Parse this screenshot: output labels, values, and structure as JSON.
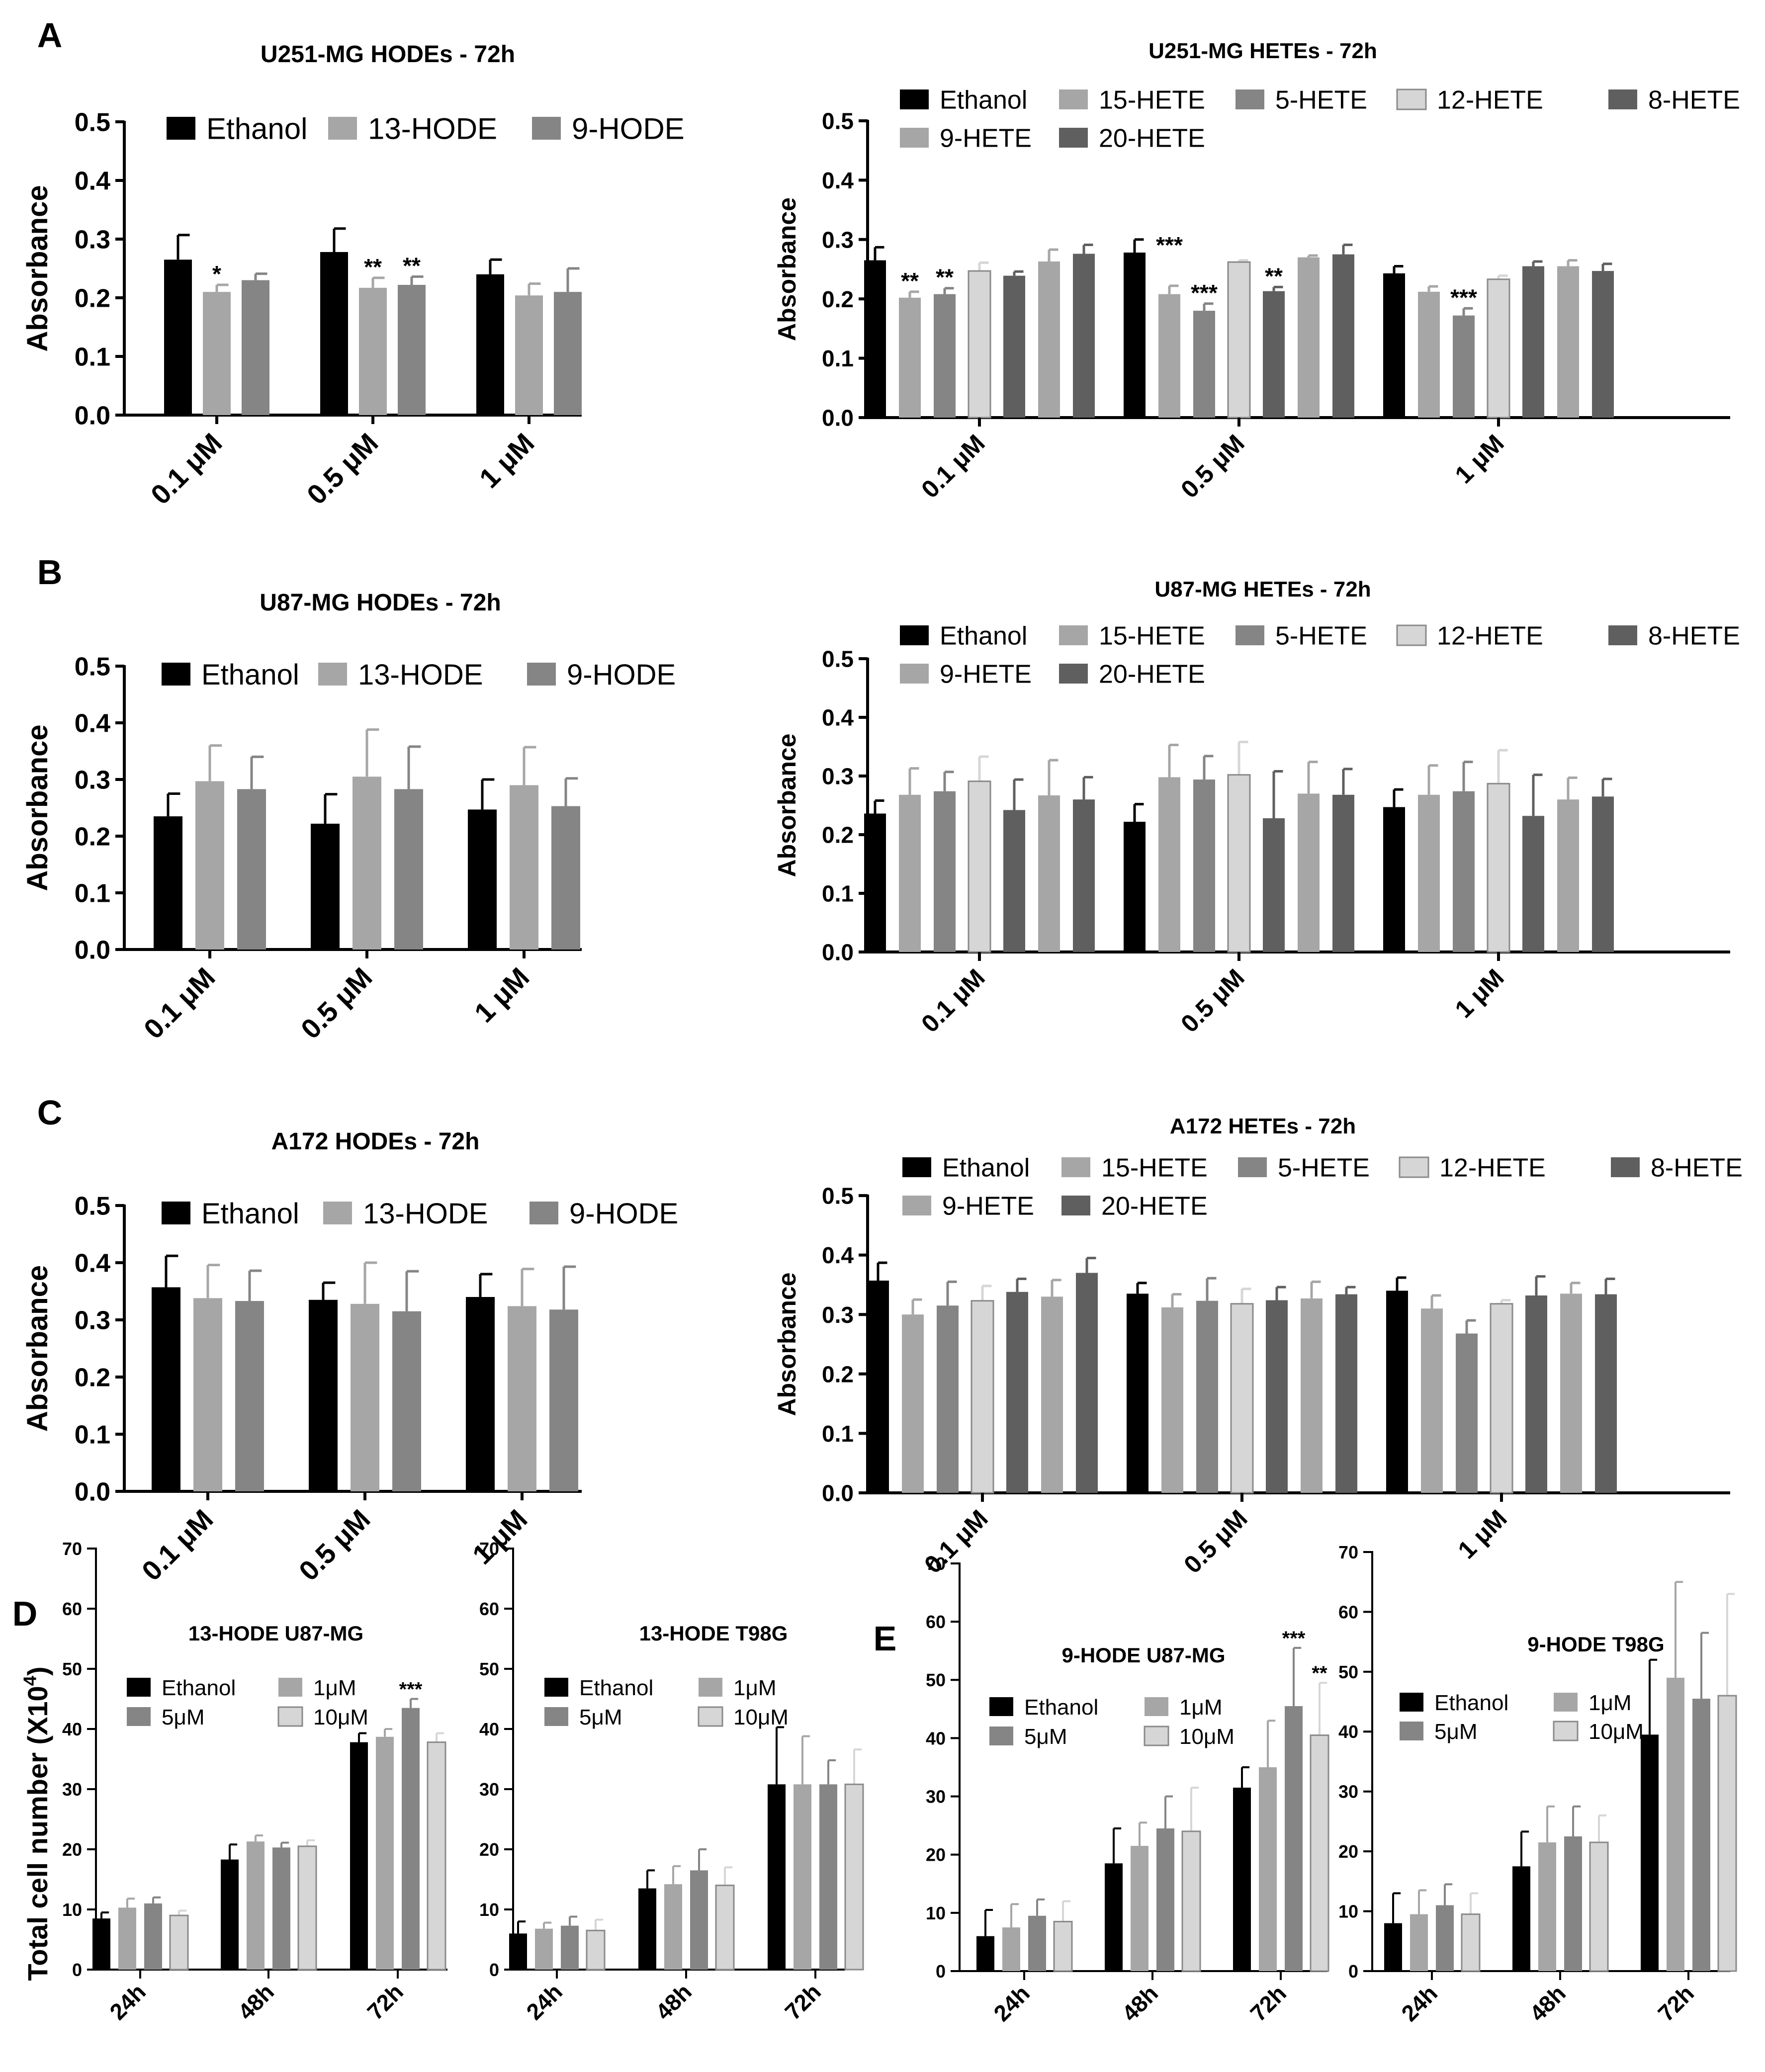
{
  "panel_letters": [
    "A",
    "B",
    "C",
    "D",
    "E"
  ],
  "colors": {
    "Ethanol": "#000000",
    "13-HODE": "#a6a6a6",
    "9-HODE": "#858585",
    "15-HETE": "#a6a6a6",
    "5-HETE": "#858585",
    "12-HETE": "#d6d6d6",
    "8-HETE": "#5f5f5f",
    "9-HETE": "#a6a6a6",
    "20-HETE": "#5f5f5f",
    "1μM": "#a6a6a6",
    "5μM": "#858585",
    "10μM": "#d6d6d6"
  },
  "chart_data": [
    {
      "type": "bar",
      "panel": "A",
      "title": "U251-MG HODEs - 72h",
      "ylabel": "Absorbance",
      "xlabel": "",
      "ylim": [
        0,
        0.5
      ],
      "yticks": [
        0,
        0.1,
        0.2,
        0.3,
        0.4,
        0.5
      ],
      "ydecimals": 1,
      "categories": [
        "0.1 μM",
        "0.5 μM",
        "1 μM"
      ],
      "series": [
        {
          "name": "Ethanol",
          "values": [
            0.265,
            0.278,
            0.24
          ],
          "errors": [
            0.042,
            0.04,
            0.025
          ]
        },
        {
          "name": "13-HODE",
          "values": [
            0.21,
            0.217,
            0.204
          ],
          "errors": [
            0.012,
            0.017,
            0.02
          ]
        },
        {
          "name": "9-HODE",
          "values": [
            0.23,
            0.222,
            0.21
          ],
          "errors": [
            0.011,
            0.014,
            0.04
          ]
        }
      ],
      "annotations": [
        {
          "text": "*",
          "category": 0,
          "series": 1
        },
        {
          "text": "**",
          "category": 1,
          "series": 1
        },
        {
          "text": "**",
          "category": 1,
          "series": 2
        }
      ]
    },
    {
      "type": "bar",
      "panel": "A",
      "title": "U251-MG HETEs - 72h",
      "ylabel": "Absorbance",
      "xlabel": "",
      "ylim": [
        0,
        0.5
      ],
      "yticks": [
        0,
        0.1,
        0.2,
        0.3,
        0.4,
        0.5
      ],
      "ydecimals": 1,
      "categories": [
        "0.1 μM",
        "0.5 μM",
        "1 μM"
      ],
      "series": [
        {
          "name": "Ethanol",
          "values": [
            0.265,
            0.278,
            0.243
          ],
          "errors": [
            0.022,
            0.022,
            0.012
          ]
        },
        {
          "name": "15-HETE",
          "values": [
            0.202,
            0.208,
            0.212
          ],
          "errors": [
            0.01,
            0.014,
            0.009
          ]
        },
        {
          "name": "5-HETE",
          "values": [
            0.208,
            0.18,
            0.172
          ],
          "errors": [
            0.01,
            0.012,
            0.012
          ]
        },
        {
          "name": "12-HETE",
          "values": [
            0.247,
            0.262,
            0.233
          ],
          "errors": [
            0.014,
            0.003,
            0.006
          ]
        },
        {
          "name": "8-HETE",
          "values": [
            0.239,
            0.213,
            0.255
          ],
          "errors": [
            0.007,
            0.007,
            0.008
          ]
        },
        {
          "name": "9-HETE",
          "values": [
            0.263,
            0.27,
            0.255
          ],
          "errors": [
            0.02,
            0.003,
            0.01
          ]
        },
        {
          "name": "20-HETE",
          "values": [
            0.276,
            0.275,
            0.247
          ],
          "errors": [
            0.015,
            0.016,
            0.012
          ]
        }
      ],
      "annotations": [
        {
          "text": "**",
          "category": 0,
          "series": 1
        },
        {
          "text": "**",
          "category": 0,
          "series": 2
        },
        {
          "text": "***",
          "category": 1,
          "series": 1,
          "offset": 1
        },
        {
          "text": "***",
          "category": 1,
          "series": 2
        },
        {
          "text": "**",
          "category": 1,
          "series": 4
        },
        {
          "text": "***",
          "category": 2,
          "series": 2
        }
      ]
    },
    {
      "type": "bar",
      "panel": "B",
      "title": "U87-MG HODEs - 72h",
      "ylabel": "Absorbance",
      "xlabel": "",
      "ylim": [
        0,
        0.5
      ],
      "yticks": [
        0,
        0.1,
        0.2,
        0.3,
        0.4,
        0.5
      ],
      "ydecimals": 1,
      "categories": [
        "0.1 μM",
        "0.5 μM",
        "1 μM"
      ],
      "series": [
        {
          "name": "Ethanol",
          "values": [
            0.235,
            0.222,
            0.247
          ],
          "errors": [
            0.04,
            0.052,
            0.053
          ]
        },
        {
          "name": "13-HODE",
          "values": [
            0.297,
            0.305,
            0.29
          ],
          "errors": [
            0.063,
            0.083,
            0.067
          ]
        },
        {
          "name": "9-HODE",
          "values": [
            0.283,
            0.283,
            0.253
          ],
          "errors": [
            0.057,
            0.075,
            0.049
          ]
        }
      ],
      "annotations": []
    },
    {
      "type": "bar",
      "panel": "B",
      "title": "U87-MG HETEs - 72h",
      "ylabel": "Absorbance",
      "xlabel": "",
      "ylim": [
        0,
        0.5
      ],
      "yticks": [
        0,
        0.1,
        0.2,
        0.3,
        0.4,
        0.5
      ],
      "ydecimals": 1,
      "categories": [
        "0.1 μM",
        "0.5 μM",
        "1 μM"
      ],
      "series": [
        {
          "name": "Ethanol",
          "values": [
            0.236,
            0.222,
            0.247
          ],
          "errors": [
            0.022,
            0.03,
            0.03
          ]
        },
        {
          "name": "15-HETE",
          "values": [
            0.268,
            0.298,
            0.268
          ],
          "errors": [
            0.045,
            0.055,
            0.05
          ]
        },
        {
          "name": "5-HETE",
          "values": [
            0.274,
            0.294,
            0.274
          ],
          "errors": [
            0.033,
            0.04,
            0.05
          ]
        },
        {
          "name": "12-HETE",
          "values": [
            0.291,
            0.302,
            0.287
          ],
          "errors": [
            0.042,
            0.056,
            0.057
          ]
        },
        {
          "name": "8-HETE",
          "values": [
            0.242,
            0.228,
            0.232
          ],
          "errors": [
            0.052,
            0.08,
            0.07
          ]
        },
        {
          "name": "9-HETE",
          "values": [
            0.267,
            0.27,
            0.26
          ],
          "errors": [
            0.06,
            0.054,
            0.037
          ]
        },
        {
          "name": "20-HETE",
          "values": [
            0.26,
            0.268,
            0.265
          ],
          "errors": [
            0.038,
            0.044,
            0.03
          ]
        }
      ],
      "annotations": []
    },
    {
      "type": "bar",
      "panel": "C",
      "title": "A172 HODEs - 72h",
      "ylabel": "Absorbance",
      "xlabel": "",
      "ylim": [
        0,
        0.5
      ],
      "yticks": [
        0,
        0.1,
        0.2,
        0.3,
        0.4,
        0.5
      ],
      "ydecimals": 1,
      "categories": [
        "0.1 μM",
        "0.5 μM",
        "1 μM"
      ],
      "series": [
        {
          "name": "Ethanol",
          "values": [
            0.357,
            0.335,
            0.34
          ],
          "errors": [
            0.055,
            0.03,
            0.04
          ]
        },
        {
          "name": "13-HODE",
          "values": [
            0.338,
            0.328,
            0.324
          ],
          "errors": [
            0.058,
            0.072,
            0.065
          ]
        },
        {
          "name": "9-HODE",
          "values": [
            0.333,
            0.315,
            0.318
          ],
          "errors": [
            0.053,
            0.07,
            0.075
          ]
        }
      ],
      "annotations": []
    },
    {
      "type": "bar",
      "panel": "C",
      "title": "A172 HETEs - 72h",
      "ylabel": "Absorbance",
      "xlabel": "",
      "ylim": [
        0,
        0.5
      ],
      "yticks": [
        0,
        0.1,
        0.2,
        0.3,
        0.4,
        0.5
      ],
      "ydecimals": 1,
      "categories": [
        "0.1 μM",
        "0.5 μM",
        "1 μM"
      ],
      "series": [
        {
          "name": "Ethanol",
          "values": [
            0.357,
            0.335,
            0.34
          ],
          "errors": [
            0.03,
            0.018,
            0.022
          ]
        },
        {
          "name": "15-HETE",
          "values": [
            0.3,
            0.312,
            0.31
          ],
          "errors": [
            0.025,
            0.022,
            0.022
          ]
        },
        {
          "name": "5-HETE",
          "values": [
            0.315,
            0.323,
            0.268
          ],
          "errors": [
            0.04,
            0.038,
            0.022
          ]
        },
        {
          "name": "12-HETE",
          "values": [
            0.323,
            0.318,
            0.318
          ],
          "errors": [
            0.025,
            0.025,
            0.006
          ]
        },
        {
          "name": "8-HETE",
          "values": [
            0.338,
            0.324,
            0.332
          ],
          "errors": [
            0.022,
            0.022,
            0.032
          ]
        },
        {
          "name": "9-HETE",
          "values": [
            0.33,
            0.327,
            0.335
          ],
          "errors": [
            0.028,
            0.028,
            0.018
          ]
        },
        {
          "name": "20-HETE",
          "values": [
            0.37,
            0.334,
            0.334
          ],
          "errors": [
            0.025,
            0.012,
            0.026
          ]
        }
      ],
      "annotations": []
    },
    {
      "type": "bar",
      "panel": "D",
      "title": "13-HODE U87-MG",
      "ylabel": "Total cell number (X10",
      "ylabel_sup": "4",
      "ylabel_tail": ")",
      "xlabel": "",
      "ylim": [
        0,
        70
      ],
      "yticks": [
        0,
        10,
        20,
        30,
        40,
        50,
        60,
        70
      ],
      "ydecimals": 0,
      "categories": [
        "24h",
        "48h",
        "72h"
      ],
      "series": [
        {
          "name": "Ethanol",
          "values": [
            8.5,
            18.3,
            37.8
          ],
          "errors": [
            1.0,
            2.5,
            1.5
          ]
        },
        {
          "name": "1μM",
          "values": [
            10.3,
            21.3,
            38.7
          ],
          "errors": [
            1.5,
            1.0,
            1.3
          ]
        },
        {
          "name": "5μM",
          "values": [
            11.0,
            20.3,
            43.5
          ],
          "errors": [
            1.0,
            0.8,
            1.5
          ]
        },
        {
          "name": "10μM",
          "values": [
            9.0,
            20.5,
            37.8
          ],
          "errors": [
            0.8,
            1.0,
            1.5
          ]
        }
      ],
      "annotations": [
        {
          "text": "***",
          "category": 2,
          "series": 2
        }
      ]
    },
    {
      "type": "bar",
      "panel": "D",
      "title": "13-HODE T98G",
      "ylabel": "",
      "xlabel": "",
      "ylim": [
        0,
        70
      ],
      "yticks": [
        0,
        10,
        20,
        30,
        40,
        50,
        60,
        70
      ],
      "ydecimals": 0,
      "categories": [
        "24h",
        "48h",
        "72h"
      ],
      "series": [
        {
          "name": "Ethanol",
          "values": [
            6.0,
            13.5,
            30.8
          ],
          "errors": [
            2.0,
            3.0,
            9.5
          ]
        },
        {
          "name": "1μM",
          "values": [
            6.8,
            14.2,
            30.8
          ],
          "errors": [
            1.0,
            3.0,
            8.0
          ]
        },
        {
          "name": "5μM",
          "values": [
            7.3,
            16.5,
            30.8
          ],
          "errors": [
            1.5,
            3.5,
            4.0
          ]
        },
        {
          "name": "10μM",
          "values": [
            6.5,
            14.0,
            30.8
          ],
          "errors": [
            1.8,
            3.0,
            5.8
          ]
        }
      ],
      "annotations": []
    },
    {
      "type": "bar",
      "panel": "E",
      "title": "9-HODE U87-MG",
      "ylabel": "",
      "xlabel": "",
      "ylim": [
        0,
        70
      ],
      "yticks": [
        0,
        10,
        20,
        30,
        40,
        50,
        60,
        70
      ],
      "ydecimals": 0,
      "categories": [
        "24h",
        "48h",
        "72h"
      ],
      "series": [
        {
          "name": "Ethanol",
          "values": [
            6.0,
            18.5,
            31.5
          ],
          "errors": [
            4.5,
            6.0,
            3.5
          ]
        },
        {
          "name": "1μM",
          "values": [
            7.5,
            21.5,
            35.0
          ],
          "errors": [
            4.0,
            4.0,
            8.0
          ]
        },
        {
          "name": "5μM",
          "values": [
            9.5,
            24.5,
            45.5
          ],
          "errors": [
            2.8,
            5.5,
            10.0
          ]
        },
        {
          "name": "10μM",
          "values": [
            8.5,
            24.0,
            40.5
          ],
          "errors": [
            3.5,
            7.5,
            9.0
          ]
        }
      ],
      "annotations": [
        {
          "text": "***",
          "category": 2,
          "series": 2
        },
        {
          "text": "**",
          "category": 2,
          "series": 3
        }
      ]
    },
    {
      "type": "bar",
      "panel": "E",
      "title": "9-HODE T98G",
      "ylabel": "",
      "xlabel": "",
      "ylim": [
        0,
        70
      ],
      "yticks": [
        0,
        10,
        20,
        30,
        40,
        50,
        60,
        70
      ],
      "ydecimals": 0,
      "categories": [
        "24h",
        "48h",
        "72h"
      ],
      "series": [
        {
          "name": "Ethanol",
          "values": [
            8.0,
            17.5,
            39.5
          ],
          "errors": [
            5.0,
            5.8,
            12.5
          ]
        },
        {
          "name": "1μM",
          "values": [
            9.5,
            21.5,
            49.0
          ],
          "errors": [
            4.0,
            6.0,
            16.0
          ]
        },
        {
          "name": "5μM",
          "values": [
            11.0,
            22.5,
            45.5
          ],
          "errors": [
            3.5,
            5.0,
            11.0
          ]
        },
        {
          "name": "10μM",
          "values": [
            9.5,
            21.5,
            46.0
          ],
          "errors": [
            3.5,
            4.5,
            17.0
          ]
        }
      ],
      "annotations": []
    }
  ]
}
